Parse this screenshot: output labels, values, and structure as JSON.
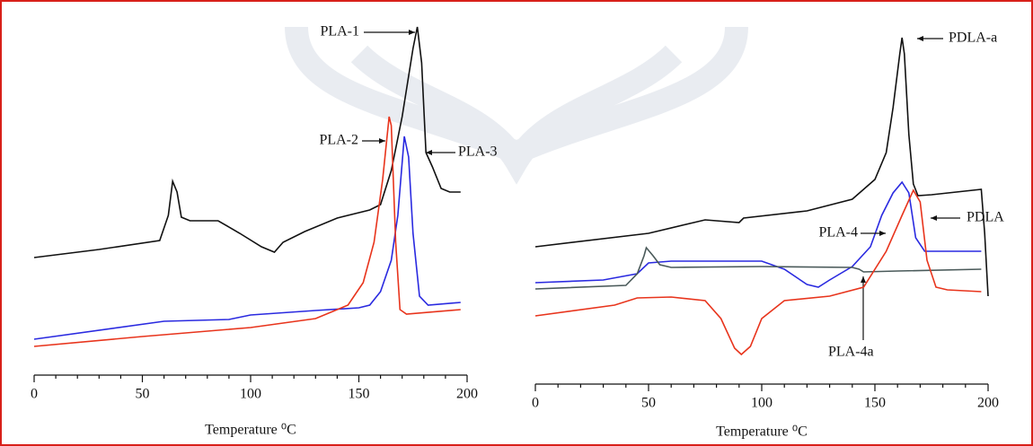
{
  "chart_data": [
    {
      "type": "line",
      "xlabel": "Temperature ⁰C",
      "xlim": [
        0,
        200
      ],
      "ylim": [
        0,
        100
      ],
      "xticks": [
        0,
        50,
        100,
        150,
        200
      ],
      "series": [
        {
          "name": "PLA-1",
          "color": "#111111",
          "x": [
            0,
            30,
            58,
            62,
            64,
            66,
            68,
            72,
            85,
            95,
            105,
            111,
            115,
            125,
            140,
            155,
            160,
            165,
            170,
            175,
            177,
            179,
            181,
            184,
            188,
            192,
            197
          ],
          "values": [
            32.75,
            35,
            37.5,
            44.5,
            54,
            51,
            44,
            43,
            43,
            39.5,
            35.75,
            34.25,
            37,
            40,
            43.75,
            46,
            47.5,
            57,
            72,
            91,
            97,
            87,
            62,
            58,
            52,
            51,
            51
          ]
        },
        {
          "name": "PLA-3",
          "color": "#2a2ae0",
          "x": [
            0,
            60,
            90,
            100,
            130,
            150,
            155,
            160,
            165,
            168,
            171,
            173,
            175,
            178,
            182,
            197
          ],
          "values": [
            10,
            15,
            15.5,
            16.75,
            18,
            18.75,
            19.5,
            23.25,
            32,
            44.5,
            66.5,
            60.75,
            39.5,
            22,
            19.5,
            20.25
          ]
        },
        {
          "name": "PLA-2",
          "color": "#e8341c",
          "x": [
            0,
            50,
            100,
            130,
            145,
            152,
            157,
            161,
            164,
            165,
            167,
            169,
            172,
            197
          ],
          "values": [
            8,
            10.75,
            13.25,
            15.75,
            19.5,
            25.75,
            37,
            54.5,
            72,
            69.5,
            37,
            18.25,
            17,
            18.25
          ]
        }
      ]
    },
    {
      "type": "line",
      "xlabel": "Temperature ⁰C",
      "xlim": [
        0,
        200
      ],
      "ylim": [
        0,
        100
      ],
      "xticks": [
        0,
        50,
        100,
        150,
        200
      ],
      "series": [
        {
          "name": "PDLA-a",
          "color": "#111111",
          "x": [
            0,
            50,
            75,
            90,
            92,
            120,
            140,
            150,
            155,
            158,
            161,
            162,
            163,
            165,
            167,
            169,
            175,
            197,
            198.5,
            200
          ],
          "values": [
            38.25,
            42,
            45.75,
            45,
            46.25,
            48.25,
            51.5,
            57,
            64.5,
            77,
            92,
            96.5,
            92,
            69.5,
            55.75,
            52.5,
            52.75,
            54.25,
            42,
            24.5
          ]
        },
        {
          "name": "PLA-4",
          "color": "#2a2ae0",
          "x": [
            0,
            30,
            45,
            50,
            60,
            100,
            110,
            120,
            125,
            130,
            140,
            148,
            153,
            158,
            162,
            165,
            168,
            172,
            197
          ],
          "values": [
            28.25,
            29,
            30.75,
            33.75,
            34.25,
            34.25,
            32,
            27.75,
            27,
            29,
            32.75,
            38.25,
            47,
            53.25,
            56.25,
            53.25,
            40.75,
            37,
            37
          ]
        },
        {
          "name": "PLA-4a",
          "color": "#4a5a5a",
          "x": [
            0,
            40,
            45,
            48,
            49,
            52,
            55,
            60,
            100,
            140,
            143,
            145,
            160,
            197
          ],
          "values": [
            26.5,
            27.5,
            30.75,
            35.75,
            38,
            35.75,
            33.25,
            32.5,
            32.75,
            32.5,
            32,
            31.25,
            31.5,
            32
          ]
        },
        {
          "name": "PDLA",
          "color": "#e8341c",
          "x": [
            0,
            35,
            45,
            60,
            75,
            82,
            88,
            91,
            95,
            100,
            110,
            130,
            145,
            155,
            162,
            167,
            170,
            173,
            177,
            182,
            197
          ],
          "values": [
            19,
            22,
            24,
            24.25,
            23.25,
            18.25,
            10,
            8.25,
            10.5,
            18.25,
            23.25,
            24.5,
            27,
            37,
            47,
            54,
            50.75,
            34.5,
            27,
            26.25,
            25.75
          ]
        }
      ]
    }
  ]
}
